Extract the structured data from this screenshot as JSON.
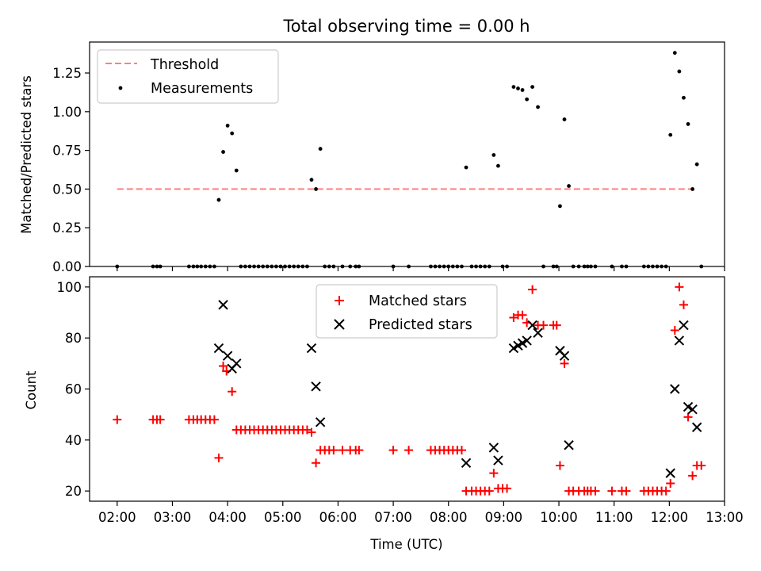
{
  "chart_data": [
    {
      "type": "scatter",
      "title": "Total observing time = 0.00 h",
      "xlabel": "",
      "ylabel": "Matched/Predicted stars",
      "xlim": [
        1.5,
        13.0
      ],
      "ylim": [
        0.0,
        1.45
      ],
      "xticks": [
        2,
        3,
        4,
        5,
        6,
        7,
        8,
        9,
        10,
        11,
        12,
        13
      ],
      "yticks": [
        0.0,
        0.25,
        0.5,
        0.75,
        1.0,
        1.25
      ],
      "ytick_labels": [
        "0.00",
        "0.25",
        "0.50",
        "0.75",
        "1.00",
        "1.25"
      ],
      "legend_position": "top-left",
      "grid": false,
      "threshold": {
        "name": "Threshold",
        "value": 0.5,
        "x_range": [
          2.0,
          12.5
        ],
        "color": "#ff7f7f",
        "style": "dashed"
      },
      "series": [
        {
          "name": "Measurements",
          "marker": "dot",
          "color": "#000000",
          "x": [
            2.0,
            2.65,
            2.72,
            2.78,
            3.3,
            3.38,
            3.45,
            3.52,
            3.6,
            3.68,
            3.76,
            3.84,
            3.92,
            4.0,
            4.08,
            4.16,
            4.24,
            4.32,
            4.4,
            4.48,
            4.56,
            4.64,
            4.72,
            4.8,
            4.88,
            4.96,
            5.04,
            5.12,
            5.2,
            5.28,
            5.36,
            5.44,
            5.52,
            5.6,
            5.68,
            5.76,
            5.84,
            5.92,
            6.08,
            6.22,
            6.32,
            6.38,
            7.0,
            7.28,
            7.68,
            7.76,
            7.84,
            7.92,
            8.0,
            8.08,
            8.16,
            8.24,
            8.32,
            8.42,
            8.5,
            8.58,
            8.66,
            8.74,
            8.82,
            8.9,
            8.98,
            9.06,
            9.18,
            9.26,
            9.34,
            9.42,
            9.52,
            9.62,
            9.72,
            9.9,
            9.96,
            10.02,
            10.1,
            10.18,
            10.26,
            10.36,
            10.46,
            10.52,
            10.58,
            10.66,
            10.96,
            11.14,
            11.22,
            11.54,
            11.62,
            11.7,
            11.78,
            11.86,
            11.94,
            12.02,
            12.1,
            12.18,
            12.26,
            12.34,
            12.42,
            12.5,
            12.58
          ],
          "y": [
            0.0,
            0.0,
            0.0,
            0.0,
            0.0,
            0.0,
            0.0,
            0.0,
            0.0,
            0.0,
            0.0,
            0.43,
            0.74,
            0.91,
            0.86,
            0.62,
            0.0,
            0.0,
            0.0,
            0.0,
            0.0,
            0.0,
            0.0,
            0.0,
            0.0,
            0.0,
            0.0,
            0.0,
            0.0,
            0.0,
            0.0,
            0.0,
            0.56,
            0.5,
            0.76,
            0.0,
            0.0,
            0.0,
            0.0,
            0.0,
            0.0,
            0.0,
            0.0,
            0.0,
            0.0,
            0.0,
            0.0,
            0.0,
            0.0,
            0.0,
            0.0,
            0.0,
            0.64,
            0.0,
            0.0,
            0.0,
            0.0,
            0.0,
            0.72,
            0.65,
            0.0,
            0.0,
            1.16,
            1.15,
            1.14,
            1.08,
            1.16,
            1.03,
            0.0,
            0.0,
            0.0,
            0.39,
            0.95,
            0.52,
            0.0,
            0.0,
            0.0,
            0.0,
            0.0,
            0.0,
            0.0,
            0.0,
            0.0,
            0.0,
            0.0,
            0.0,
            0.0,
            0.0,
            0.0,
            0.85,
            1.38,
            1.26,
            1.09,
            0.92,
            0.5,
            0.66,
            0.0
          ]
        }
      ]
    },
    {
      "type": "scatter",
      "title": "",
      "xlabel": "Time (UTC)",
      "ylabel": "Count",
      "xlim": [
        1.5,
        13.0
      ],
      "ylim": [
        16,
        104
      ],
      "xticks": [
        2,
        3,
        4,
        5,
        6,
        7,
        8,
        9,
        10,
        11,
        12,
        13
      ],
      "xtick_labels": [
        "02:00",
        "03:00",
        "04:00",
        "05:00",
        "06:00",
        "07:00",
        "08:00",
        "09:00",
        "10:00",
        "11:00",
        "12:00",
        "13:00"
      ],
      "yticks": [
        20,
        40,
        60,
        80,
        100
      ],
      "ytick_labels": [
        "20",
        "40",
        "60",
        "80",
        "100"
      ],
      "legend_position": "top-center",
      "grid": false,
      "series": [
        {
          "name": "Matched stars",
          "marker": "plus",
          "color": "#ff0000",
          "x": [
            2.0,
            2.65,
            2.72,
            2.78,
            3.3,
            3.38,
            3.45,
            3.52,
            3.6,
            3.68,
            3.76,
            3.84,
            3.92,
            3.98,
            4.08,
            4.16,
            4.24,
            4.32,
            4.4,
            4.48,
            4.56,
            4.64,
            4.72,
            4.8,
            4.88,
            4.96,
            5.04,
            5.12,
            5.2,
            5.28,
            5.36,
            5.44,
            5.52,
            5.6,
            5.68,
            5.76,
            5.84,
            5.92,
            6.08,
            6.22,
            6.32,
            6.38,
            7.0,
            7.28,
            7.68,
            7.76,
            7.84,
            7.92,
            8.0,
            8.08,
            8.16,
            8.24,
            8.32,
            8.42,
            8.5,
            8.58,
            8.66,
            8.74,
            8.82,
            8.9,
            8.98,
            9.06,
            9.18,
            9.26,
            9.34,
            9.42,
            9.52,
            9.62,
            9.72,
            9.9,
            9.96,
            10.02,
            10.1,
            10.18,
            10.26,
            10.36,
            10.46,
            10.52,
            10.58,
            10.66,
            10.96,
            11.14,
            11.22,
            11.54,
            11.62,
            11.7,
            11.78,
            11.86,
            11.94,
            12.02,
            12.1,
            12.18,
            12.26,
            12.34,
            12.42,
            12.5,
            12.58
          ],
          "y": [
            48,
            48,
            48,
            48,
            48,
            48,
            48,
            48,
            48,
            48,
            48,
            33,
            69,
            67,
            59,
            44,
            44,
            44,
            44,
            44,
            44,
            44,
            44,
            44,
            44,
            44,
            44,
            44,
            44,
            44,
            44,
            44,
            43,
            31,
            36,
            36,
            36,
            36,
            36,
            36,
            36,
            36,
            36,
            36,
            36,
            36,
            36,
            36,
            36,
            36,
            36,
            36,
            20,
            20,
            20,
            20,
            20,
            20,
            27,
            21,
            21,
            21,
            88,
            89,
            89,
            86,
            99,
            85,
            85,
            85,
            85,
            30,
            70,
            20,
            20,
            20,
            20,
            20,
            20,
            20,
            20,
            20,
            20,
            20,
            20,
            20,
            20,
            20,
            20,
            23,
            83,
            100,
            93,
            49,
            26,
            30,
            30
          ]
        },
        {
          "name": "Predicted stars",
          "marker": "x",
          "color": "#000000",
          "x": [
            3.84,
            3.92,
            4.0,
            4.08,
            4.16,
            5.52,
            5.6,
            5.68,
            8.32,
            8.82,
            8.9,
            9.18,
            9.26,
            9.34,
            9.42,
            9.52,
            9.62,
            10.02,
            10.1,
            10.18,
            12.02,
            12.1,
            12.18,
            12.26,
            12.34,
            12.42,
            12.5
          ],
          "y": [
            76,
            93,
            73,
            68,
            70,
            76,
            61,
            47,
            31,
            37,
            32,
            76,
            77,
            78,
            79,
            85,
            82,
            75,
            73,
            38,
            27,
            60,
            79,
            85,
            53,
            52,
            45
          ]
        }
      ]
    }
  ]
}
